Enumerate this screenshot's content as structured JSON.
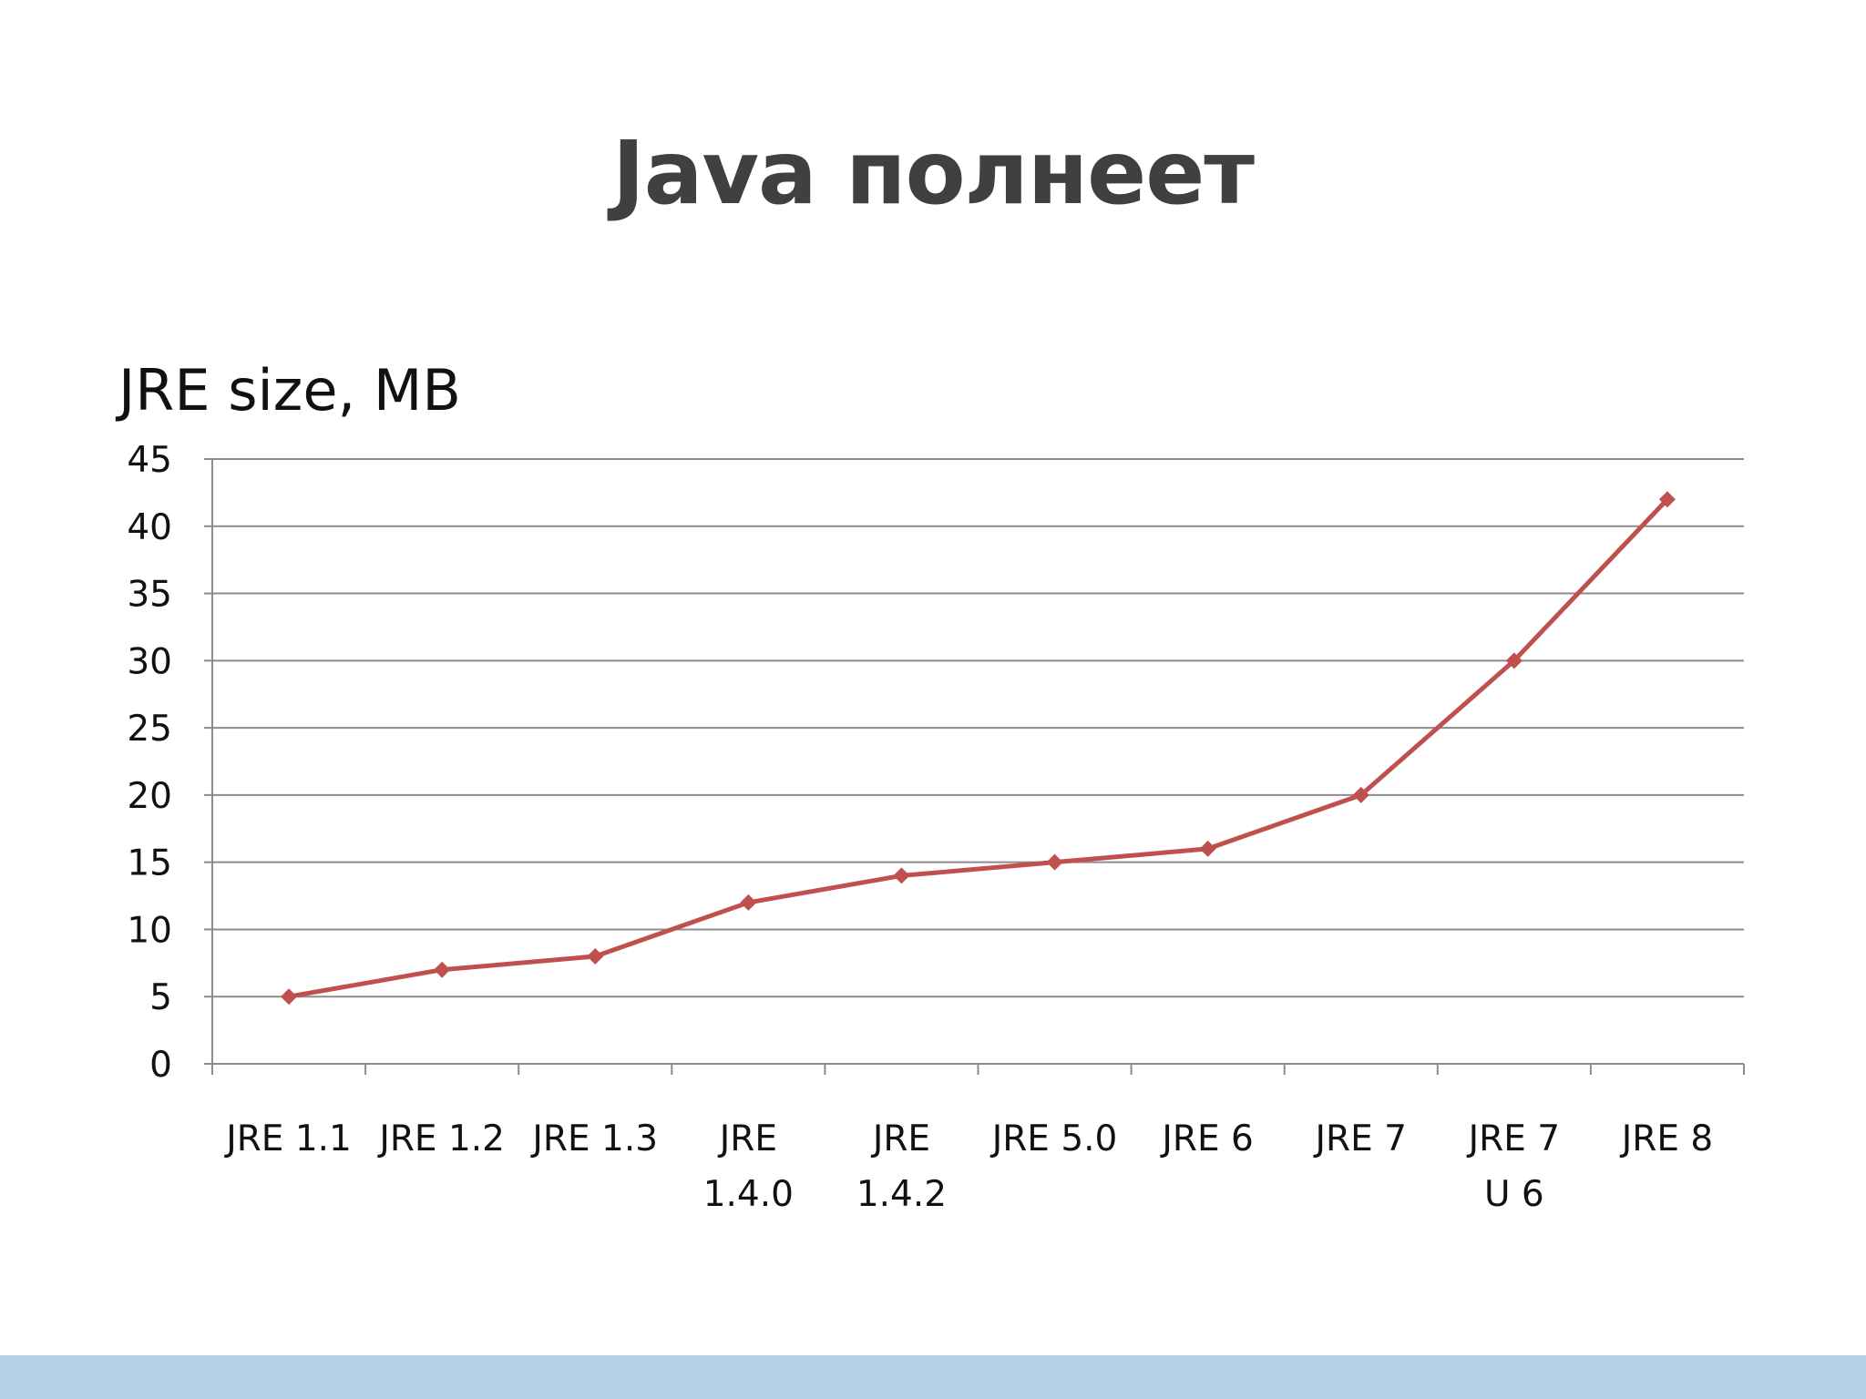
{
  "slide": {
    "title": "Java полнеет"
  },
  "colors": {
    "series": "#c0504d",
    "gridline": "#8c8c8c",
    "footer_band": "#b3d0e5",
    "title_text": "#404040"
  },
  "chart_data": {
    "type": "line",
    "title": "",
    "ylabel": "JRE size, MB",
    "xlabel": "",
    "categories": [
      [
        "JRE 1.1"
      ],
      [
        "JRE 1.2"
      ],
      [
        "JRE 1.3"
      ],
      [
        "JRE",
        "1.4.0"
      ],
      [
        "JRE",
        "1.4.2"
      ],
      [
        "JRE 5.0"
      ],
      [
        "JRE 6"
      ],
      [
        "JRE 7"
      ],
      [
        "JRE 7",
        "U 6"
      ],
      [
        "JRE 8"
      ]
    ],
    "series": [
      {
        "values": [
          5,
          7,
          8,
          12,
          14,
          15,
          16,
          20,
          30,
          42
        ],
        "marker": "diamond"
      }
    ],
    "ylim": [
      0,
      45
    ],
    "yticks": [
      0,
      5,
      10,
      15,
      20,
      25,
      30,
      35,
      40,
      45
    ],
    "grid": "horizontal",
    "legend": "none"
  }
}
